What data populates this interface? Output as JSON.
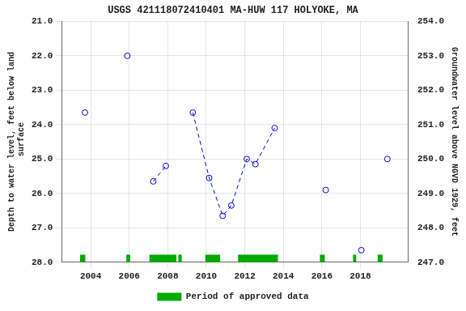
{
  "chart_data": {
    "type": "scatter",
    "title": "USGS 421118072410401 MA-HUW 117 HOLYOKE, MA",
    "y_label": "Depth to water level, feet below land\n surface",
    "y2_label": "Groundwater level above NGVD 1929, feet",
    "xlim": [
      2002.5,
      2020.5
    ],
    "xticks": [
      2004,
      2006,
      2008,
      2010,
      2012,
      2014,
      2016,
      2018
    ],
    "ylim": [
      28.0,
      21.0
    ],
    "yticks": [
      {
        "value": 21,
        "label": "21.0"
      },
      {
        "value": 22,
        "label": "22.0"
      },
      {
        "value": 23,
        "label": "23.0"
      },
      {
        "value": 24,
        "label": "24.0"
      },
      {
        "value": 25,
        "label": "25.0"
      },
      {
        "value": 26,
        "label": "26.0"
      },
      {
        "value": 27,
        "label": "27.0"
      },
      {
        "value": 28,
        "label": "28.0"
      }
    ],
    "y2lim": [
      247.0,
      254.0
    ],
    "y2ticks": [
      {
        "value": 247,
        "label": "247.0"
      },
      {
        "value": 248,
        "label": "248.0"
      },
      {
        "value": 249,
        "label": "249.0"
      },
      {
        "value": 250,
        "label": "250.0"
      },
      {
        "value": 251,
        "label": "251.0"
      },
      {
        "value": 252,
        "label": "252.0"
      },
      {
        "value": 253,
        "label": "253.0"
      },
      {
        "value": 254,
        "label": "254.0"
      }
    ],
    "grid": true,
    "legend": "bottom",
    "series": [
      {
        "type": "line",
        "line_style": "dashed",
        "color": "#0000cc",
        "x": [
          2007.25,
          2007.9
        ],
        "values": [
          25.65,
          25.2
        ]
      },
      {
        "type": "line",
        "line_style": "dashed",
        "color": "#0000cc",
        "x": [
          2009.3,
          2010.15,
          2010.85,
          2011.3,
          2012.1,
          2012.55,
          2013.55
        ],
        "values": [
          23.65,
          25.55,
          26.65,
          26.35,
          25.0,
          25.15,
          24.1
        ]
      },
      {
        "type": "scatter",
        "marker": "circle",
        "color": "#0000cc",
        "x": [
          2003.7,
          2005.9,
          2007.25,
          2007.9,
          2009.3,
          2010.15,
          2010.85,
          2011.3,
          2012.1,
          2012.55,
          2013.55,
          2016.2,
          2018.05,
          2019.4
        ],
        "values": [
          23.65,
          22.0,
          25.65,
          25.2,
          23.65,
          25.55,
          26.65,
          26.35,
          25.0,
          25.15,
          24.1,
          25.9,
          27.65,
          25.0
        ]
      },
      {
        "type": "band",
        "name": "Period of approved data",
        "color": "#00aa00",
        "ranges": [
          [
            2003.45,
            2003.72
          ],
          [
            2005.85,
            2006.05
          ],
          [
            2007.05,
            2008.45
          ],
          [
            2008.55,
            2008.72
          ],
          [
            2009.95,
            2010.72
          ],
          [
            2011.65,
            2013.72
          ],
          [
            2015.9,
            2016.15
          ],
          [
            2017.62,
            2017.78
          ],
          [
            2018.9,
            2019.15
          ]
        ],
        "top": 28.0,
        "height": 0.22
      }
    ]
  }
}
